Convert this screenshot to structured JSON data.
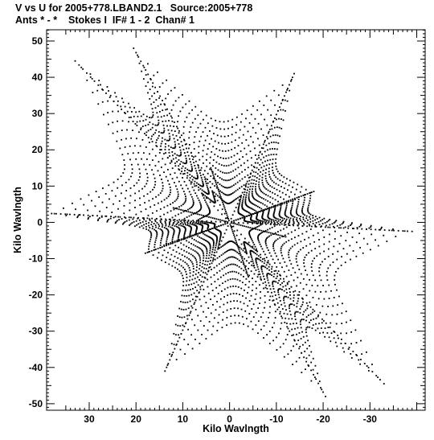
{
  "header": {
    "title_line1": "V vs U for 2005+778.LBAND2.1   Source:2005+778",
    "title_line2": "Ants * - *    Stokes I  IF# 1 - 2  Chan# 1"
  },
  "chart_data": {
    "type": "scatter",
    "title": "V vs U for 2005+778.LBAND2.1   Source:2005+778",
    "subtitle": "Ants * - *    Stokes I  IF# 1 - 2  Chan# 1",
    "xlabel": "Kilo Wavlngth",
    "ylabel": "Kilo Wavlngth",
    "xlim": [
      39.1,
      -41.8
    ],
    "ylim": [
      -51.8,
      53.1
    ],
    "x_ticks": [
      30,
      20,
      10,
      0,
      -10,
      -20,
      -30
    ],
    "y_ticks": [
      50,
      40,
      30,
      20,
      10,
      0,
      -10,
      -20,
      -30,
      -40,
      -50
    ],
    "x_tick_labels": [
      "30",
      "20",
      "10",
      "0",
      "-10",
      "-20",
      "-30"
    ],
    "y_tick_labels": [
      "50",
      "40",
      "30",
      "20",
      "10",
      "0",
      "-10",
      "-20",
      "-30",
      "-40",
      "-50"
    ],
    "grid": false,
    "marker_color": "#000000",
    "series": [
      {
        "description_of_pattern": "",
        "arms": [
          {
            "u": 20.5,
            "v": 48.0
          },
          {
            "u": 33.0,
            "v": 44.5
          },
          {
            "u": 39.0,
            "v": 2.5
          },
          {
            "u": 18.0,
            "v": -8.5
          },
          {
            "u": 13.8,
            "v": -41.0
          },
          {
            "u": -20.5,
            "v": -48.0
          },
          {
            "u": -33.0,
            "v": -44.5
          },
          {
            "u": -39.0,
            "v": -2.5
          },
          {
            "u": -18.0,
            "v": 8.5
          },
          {
            "u": -13.8,
            "v": 41.0
          }
        ],
        "samples_per_track": 24,
        "radial_steps": [
          0.18,
          0.26,
          0.33,
          0.4,
          0.47,
          0.54,
          0.61,
          0.68,
          0.75,
          0.82,
          0.89,
          0.96
        ]
      }
    ]
  }
}
